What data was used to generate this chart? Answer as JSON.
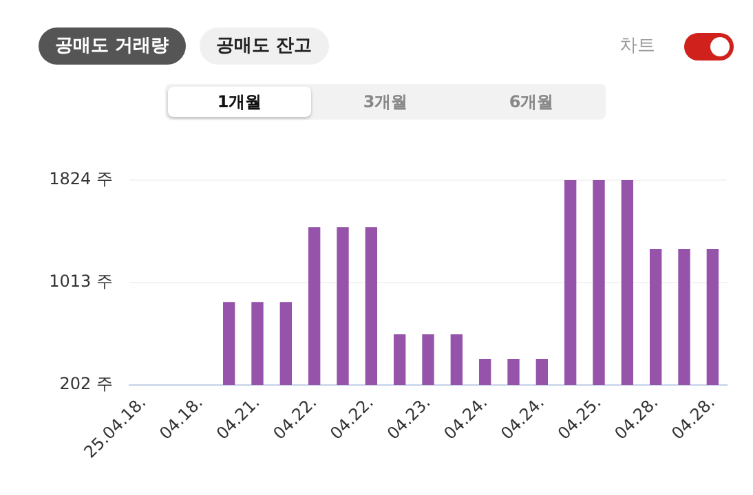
{
  "chart_data": {
    "type": "bar",
    "categories": [
      "25.04.18.",
      null,
      "04.18.",
      null,
      "04.21.",
      null,
      "04.22.",
      null,
      "04.22.",
      null,
      "04.23.",
      null,
      "04.24.",
      null,
      "04.24.",
      null,
      "04.25.",
      null,
      "04.28.",
      null,
      "04.28."
    ],
    "values": [
      null,
      null,
      null,
      859,
      859,
      859,
      1452,
      1452,
      1452,
      604,
      604,
      604,
      409,
      409,
      409,
      1824,
      1824,
      1824,
      1280,
      1280,
      1280
    ],
    "color": "#9553a9",
    "ylim": [
      202,
      1824
    ],
    "yticks": [
      {
        "value": 202,
        "label": "202 주"
      },
      {
        "value": 1013,
        "label": "1013 주"
      },
      {
        "value": 1824,
        "label": "1824 주"
      }
    ],
    "grid": "y",
    "legend": false,
    "annotations": [
      "공매도 거래량",
      "공매도 잔고",
      "차트",
      "1개월",
      "3개월",
      "6개월"
    ]
  }
}
